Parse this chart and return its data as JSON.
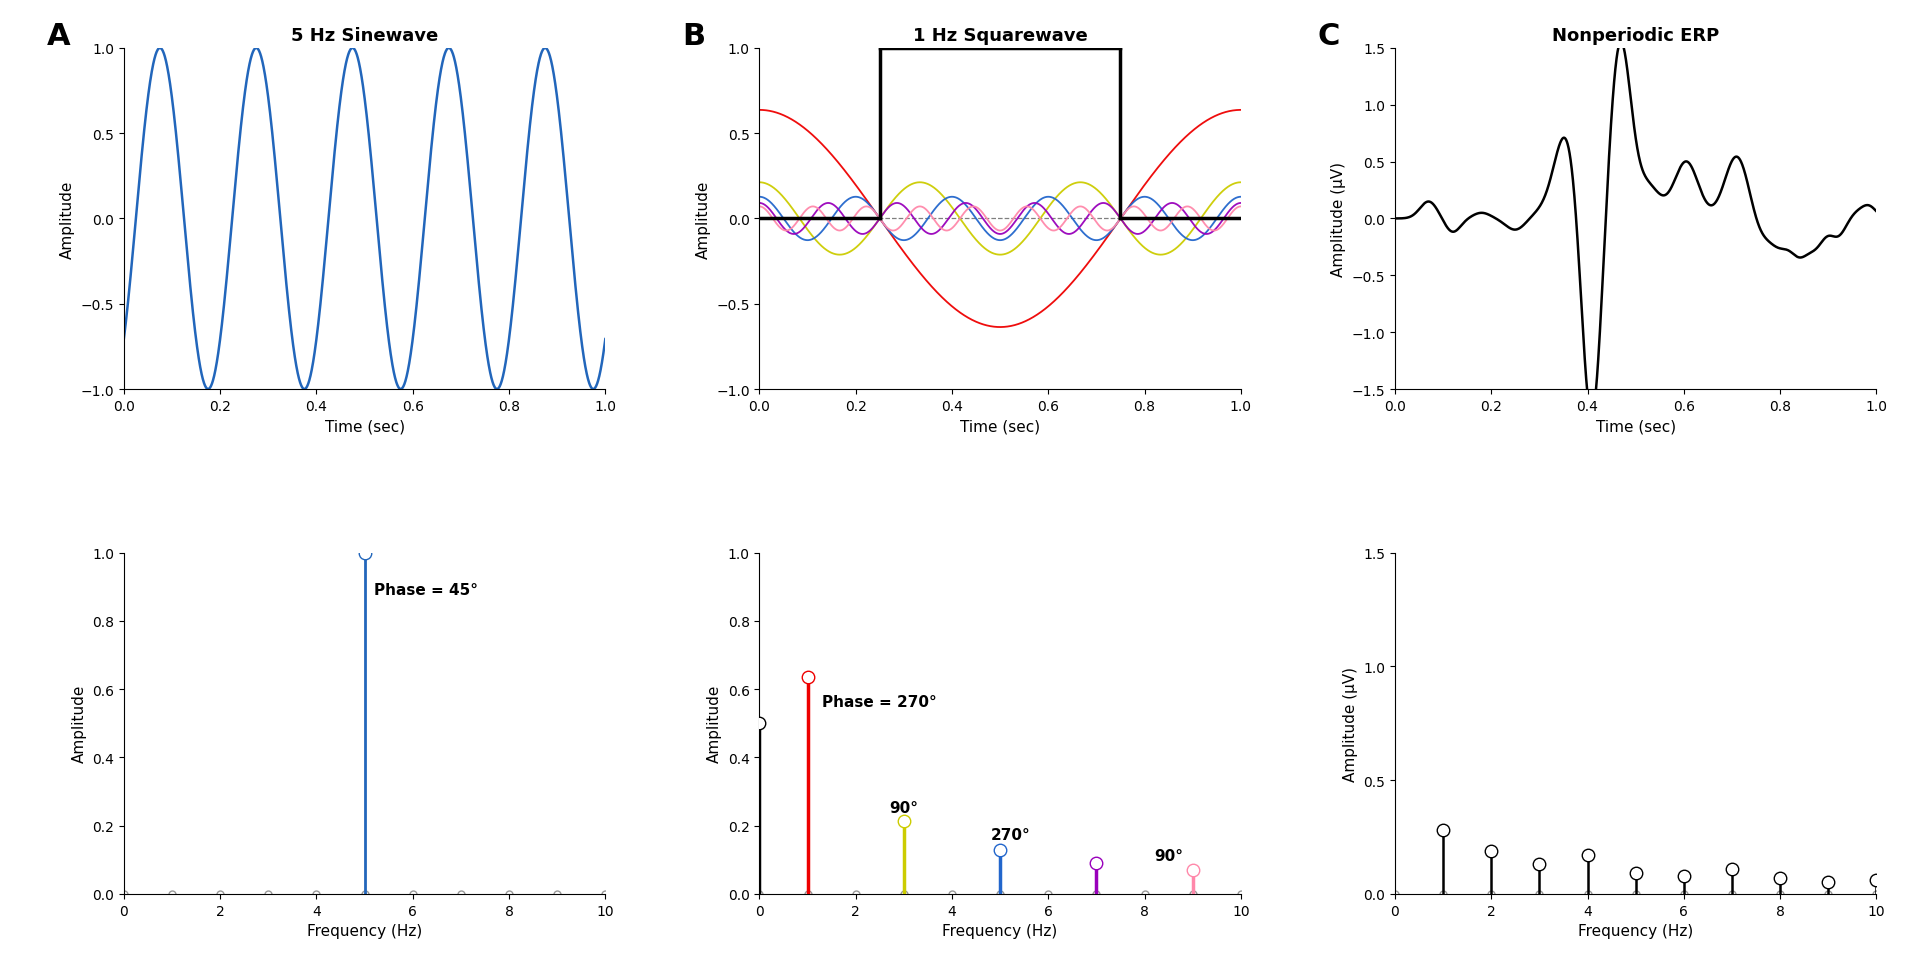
{
  "panel_A_title": "5 Hz Sinewave",
  "panel_B_title": "1 Hz Squarewave",
  "panel_C_title": "Nonperiodic ERP",
  "label_A": "A",
  "label_B": "B",
  "label_C": "C",
  "sine_freq": 5,
  "sine_phase_deg": 45,
  "sine_amplitude": 1.0,
  "squarewave_harmonics": [
    1,
    3,
    5,
    7,
    9
  ],
  "squarewave_colors": [
    "#ee0000",
    "#cccc00",
    "#2266cc",
    "#9900bb",
    "#ff88aa"
  ],
  "sine_phase_label": "Phase = 45°",
  "squarewave_phase_label": "Phase = 270°",
  "time_xlabel": "Time (sec)",
  "freq_xlabel": "Frequency (Hz)",
  "amplitude_ylabel": "Amplitude",
  "amplitude_uv_ylabel": "Amplitude (μV)",
  "freq_stem_color_A": "#2266bb",
  "background_color": "#ffffff",
  "line_color_A": "#2266bb",
  "line_color_C": "#000000",
  "sq_dc_amp": 0.5,
  "sq_freq_amps": [
    0.6366,
    0.2122,
    0.1273,
    0.0909,
    0.0707
  ],
  "sq_freq_freqs": [
    1,
    3,
    5,
    7,
    9
  ],
  "erp_freq_amplitudes": [
    0.28,
    0.19,
    0.13,
    0.17,
    0.09,
    0.08,
    0.11,
    0.07,
    0.05,
    0.06
  ],
  "erp_freq_freqs": [
    1,
    2,
    3,
    4,
    5,
    6,
    7,
    8,
    9,
    10
  ]
}
